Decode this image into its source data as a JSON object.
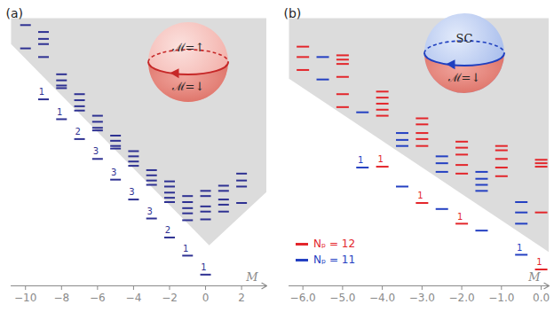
{
  "chart_data": [
    {
      "type": "scatter",
      "panel_label": "(a)",
      "xlabel": "M",
      "xlim": [
        -10.8,
        3.4
      ],
      "xticks": [
        -10,
        -8,
        -6,
        -4,
        -2,
        0,
        2
      ],
      "ylim": [
        0,
        31
      ],
      "tick_labels": "x",
      "marker": "dash",
      "shaded_region": {
        "color": "#dcdcdc",
        "x": [
          -10.8,
          -10.8,
          0.2,
          3.4,
          3.4
        ],
        "y": [
          31,
          28,
          4.7,
          10.9,
          31
        ]
      },
      "inset": {
        "upper": "ℳ=↑",
        "lower": "ℳ=↓"
      },
      "series": [
        {
          "color": "#2e3192",
          "x": [
            -10,
            -10,
            -9,
            -9,
            -9,
            -9,
            -9,
            -8,
            -8,
            -8,
            -8,
            -8,
            -7,
            -7,
            -7,
            -7,
            -7,
            -6,
            -6,
            -6,
            -6,
            -6,
            -5,
            -5,
            -5,
            -5,
            -5,
            -4,
            -4,
            -4,
            -4,
            -4,
            -3,
            -3,
            -3,
            -3,
            -3,
            -2,
            -2,
            -2,
            -2,
            -2,
            -2,
            -1,
            -1,
            -1,
            -1,
            -1,
            -1,
            0,
            0,
            0,
            0,
            0,
            0,
            1,
            1,
            1,
            1,
            1,
            2,
            2,
            2,
            2
          ],
          "y": [
            30.2,
            27.5,
            29.4,
            28.6,
            28.0,
            26.5,
            21.6,
            24.5,
            23.8,
            23.2,
            22.9,
            19.3,
            22.2,
            21.5,
            20.8,
            20.3,
            17.0,
            19.7,
            19.0,
            18.3,
            18.0,
            14.7,
            17.4,
            16.8,
            16.2,
            15.9,
            12.3,
            15.6,
            15.0,
            14.4,
            13.9,
            10.0,
            13.4,
            12.8,
            12.2,
            11.7,
            7.8,
            12.1,
            11.5,
            10.8,
            10.2,
            9.7,
            5.6,
            10.4,
            9.7,
            9.0,
            8.4,
            7.6,
            3.5,
            11.0,
            10.4,
            9.2,
            8.6,
            7.7,
            1.3,
            11.6,
            11.0,
            10.0,
            9.4,
            8.6,
            13.0,
            12.2,
            11.5,
            9.6
          ],
          "annotations": [
            {
              "x": -9,
              "y": 21.6,
              "text": "1"
            },
            {
              "x": -8,
              "y": 19.3,
              "text": "1"
            },
            {
              "x": -7,
              "y": 17.0,
              "text": "2"
            },
            {
              "x": -6,
              "y": 14.7,
              "text": "3"
            },
            {
              "x": -5,
              "y": 12.3,
              "text": "3"
            },
            {
              "x": -4,
              "y": 10.0,
              "text": "3"
            },
            {
              "x": -3,
              "y": 7.8,
              "text": "3"
            },
            {
              "x": -2,
              "y": 5.6,
              "text": "2"
            },
            {
              "x": -1,
              "y": 3.5,
              "text": "1"
            },
            {
              "x": 0,
              "y": 1.3,
              "text": "1"
            }
          ]
        }
      ]
    },
    {
      "type": "scatter",
      "panel_label": "(b)",
      "xlabel": "M",
      "xlim": [
        -6.35,
        0.2
      ],
      "xticks": [
        -6,
        -5,
        -4,
        -3,
        -2,
        -1,
        0
      ],
      "ylim": [
        0,
        31
      ],
      "tick_labels": "x",
      "marker": "dash",
      "legend": "bottom-left",
      "shaded_region": {
        "color": "#dcdcdc",
        "x": [
          -6.35,
          -6.35,
          0.2,
          0.2
        ],
        "y": [
          31,
          24,
          3.9,
          31
        ]
      },
      "inset": {
        "upper": "SC",
        "lower": "ℳ=↓"
      },
      "series": [
        {
          "name": "Nₚ = 12",
          "color": "#e3262b",
          "x": [
            -6,
            -6,
            -6,
            -5,
            -5,
            -5,
            -5,
            -5,
            -5,
            -4,
            -4,
            -4,
            -4,
            -4,
            -4,
            -3,
            -3,
            -3,
            -3,
            -3,
            -3,
            -2,
            -2,
            -2,
            -2,
            -2,
            -2,
            -1,
            -1,
            -1,
            -1,
            -1,
            0,
            0,
            0,
            0,
            0
          ],
          "y": [
            27.7,
            26.5,
            25.0,
            26.7,
            26.2,
            25.7,
            24.2,
            22.2,
            20.7,
            22.5,
            21.8,
            21.1,
            20.4,
            19.7,
            13.8,
            19.4,
            18.7,
            17.7,
            17.0,
            16.2,
            9.6,
            16.7,
            16.0,
            15.2,
            14.0,
            13.0,
            7.2,
            16.2,
            15.7,
            14.7,
            13.7,
            12.7,
            14.6,
            14.2,
            13.8,
            8.5,
            1.9
          ],
          "annotations": [
            {
              "x": -4,
              "y": 13.8,
              "text": "1"
            },
            {
              "x": -3,
              "y": 9.6,
              "text": "1"
            },
            {
              "x": -2,
              "y": 7.2,
              "text": "1"
            },
            {
              "x": 0,
              "y": 1.9,
              "text": "1"
            }
          ]
        },
        {
          "name": "Nₚ = 11",
          "color": "#2440c2",
          "x": [
            -5.5,
            -5.5,
            -4.5,
            -4.5,
            -3.5,
            -3.5,
            -3.5,
            -3.5,
            -2.5,
            -2.5,
            -2.5,
            -2.5,
            -1.5,
            -1.5,
            -1.5,
            -1.5,
            -1.5,
            -0.5,
            -0.5,
            -0.5,
            -0.5
          ],
          "y": [
            26.5,
            23.9,
            20.1,
            13.7,
            17.7,
            16.9,
            16.2,
            11.5,
            15.0,
            14.2,
            13.2,
            8.9,
            13.2,
            12.4,
            11.7,
            11.0,
            6.4,
            9.7,
            8.5,
            7.2,
            3.6
          ],
          "annotations": [
            {
              "x": -4.5,
              "y": 13.7,
              "text": "1"
            },
            {
              "x": -0.5,
              "y": 3.6,
              "text": "1"
            }
          ]
        }
      ]
    }
  ]
}
